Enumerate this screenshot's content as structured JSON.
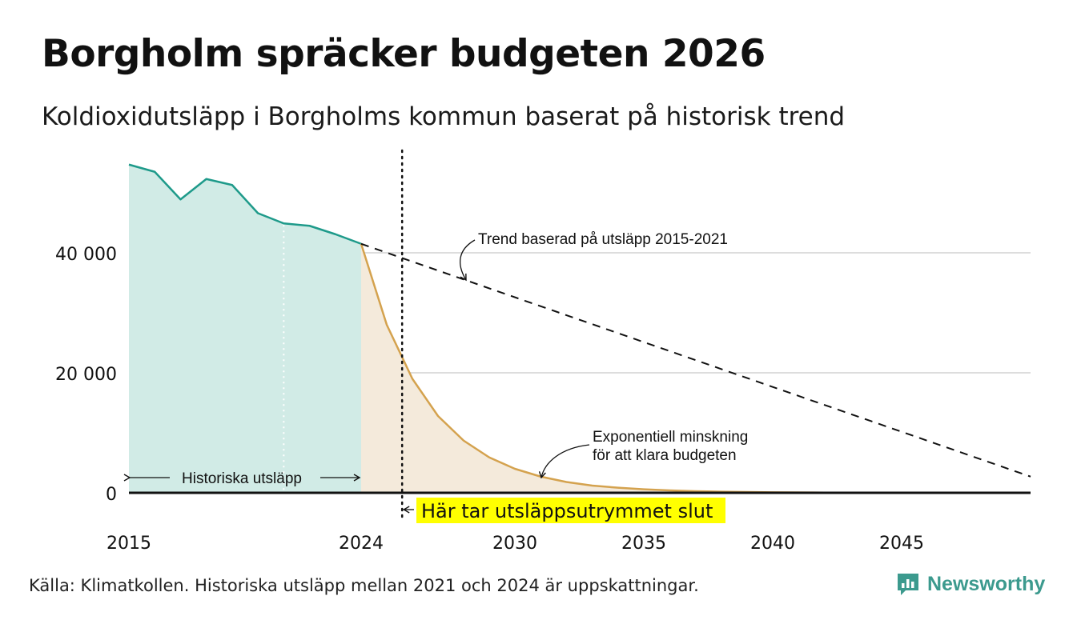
{
  "header": {
    "title": "Borgholm spräcker budgeten 2026",
    "subtitle": "Koldioxidutsläpp i Borgholms kommun baserat på historisk trend"
  },
  "footer": {
    "source": "Källa: Klimatkollen. Historiska utsläpp mellan 2021 och 2024 är uppskattningar.",
    "brand": "Newsworthy"
  },
  "colors": {
    "historical_line": "#1e9a8a",
    "historical_fill": "#d1ebe6",
    "exponential_line": "#d4a24e",
    "exponential_fill": "#f4eadb",
    "trend_line": "#111111",
    "gridline": "#dddddd",
    "highlight": "#ffff00",
    "brand": "#3c9a8e"
  },
  "chart_data": {
    "type": "area",
    "title": "Borgholm spräcker budgeten 2026",
    "subtitle": "Koldioxidutsläpp i Borgholms kommun baserat på historisk trend",
    "xlabel": "",
    "ylabel": "",
    "xlim": [
      2015,
      2050
    ],
    "ylim": [
      0,
      55000
    ],
    "x_ticks": [
      2015,
      2024,
      2030,
      2035,
      2040,
      2045
    ],
    "y_ticks": [
      0,
      20000,
      40000
    ],
    "y_tick_labels": [
      "0",
      "20 000",
      "40 000"
    ],
    "grid": true,
    "series": [
      {
        "name": "Historiska utsläpp",
        "style": "solid-area",
        "x": [
          2015,
          2016,
          2017,
          2018,
          2019,
          2020,
          2021,
          2022,
          2023,
          2024
        ],
        "values": [
          54700,
          53500,
          48900,
          52300,
          51300,
          46600,
          44900,
          44500,
          43100,
          41500
        ]
      },
      {
        "name": "Exponentiell minskning för att klara budgeten",
        "style": "solid-area",
        "x": [
          2024,
          2025,
          2026,
          2027,
          2028,
          2029,
          2030,
          2031,
          2032,
          2033,
          2034,
          2035,
          2036,
          2037,
          2038,
          2040,
          2042,
          2045,
          2050
        ],
        "values": [
          41500,
          28000,
          19000,
          12800,
          8700,
          5900,
          4000,
          2700,
          1800,
          1200,
          850,
          580,
          400,
          270,
          180,
          90,
          40,
          10,
          0
        ]
      },
      {
        "name": "Trend baserad på utsläpp 2015-2021",
        "style": "dashed",
        "x": [
          2024,
          2050
        ],
        "values": [
          41500,
          2700
        ]
      }
    ],
    "reference_lines": [
      {
        "orientation": "vertical",
        "x": 2025.6,
        "style": "dotted",
        "label": "Här tar utsläppsutrymmet slut"
      }
    ],
    "annotations": [
      {
        "text": "Historiska utsläpp",
        "from_x": 2015,
        "to_x": 2024
      },
      {
        "text": "Trend baserad på utsläpp 2015-2021"
      },
      {
        "text_lines": [
          "Exponentiell minskning",
          "för att klara budgeten"
        ]
      },
      {
        "text": "Här tar utsläppsutrymmet slut"
      }
    ]
  }
}
